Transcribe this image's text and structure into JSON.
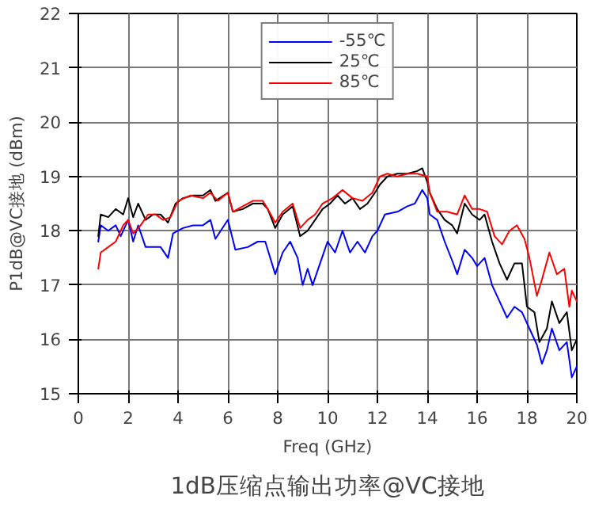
{
  "chart_data": {
    "type": "line",
    "xlabel": "Freq (GHz)",
    "ylabel": "P1dB@VC接地 (dBm)",
    "xlim": [
      0,
      20
    ],
    "ylim": [
      15,
      22
    ],
    "xticks": [
      0,
      2,
      4,
      6,
      8,
      10,
      12,
      14,
      16,
      18,
      20
    ],
    "yticks": [
      15,
      16,
      17,
      18,
      19,
      20,
      21,
      22
    ],
    "grid": true,
    "legend": "top",
    "line_style": "solid",
    "annotations": [
      "1dB压缩点输出功率@VC接地"
    ],
    "series": [
      {
        "name": "-55℃",
        "color": "#0000ff",
        "x": [
          0.8,
          0.9,
          1.2,
          1.5,
          1.7,
          2.0,
          2.2,
          2.4,
          2.7,
          3.0,
          3.3,
          3.6,
          3.8,
          4.2,
          4.6,
          5.0,
          5.3,
          5.5,
          6.0,
          6.3,
          6.8,
          7.2,
          7.5,
          7.9,
          8.2,
          8.5,
          8.8,
          9.0,
          9.2,
          9.4,
          9.7,
          10.0,
          10.3,
          10.6,
          10.9,
          11.2,
          11.5,
          11.8,
          12.0,
          12.3,
          12.8,
          13.2,
          13.5,
          13.8,
          14.0,
          14.1,
          14.4,
          14.7,
          15.0,
          15.2,
          15.5,
          15.8,
          16.0,
          16.3,
          16.6,
          16.9,
          17.2,
          17.5,
          17.8,
          18.1,
          18.4,
          18.6,
          18.8,
          19.0,
          19.3,
          19.6,
          19.8,
          20.0
        ],
        "values": [
          17.8,
          18.1,
          18.0,
          18.1,
          17.9,
          18.2,
          17.8,
          18.1,
          17.7,
          17.7,
          17.7,
          17.5,
          17.95,
          18.05,
          18.1,
          18.1,
          18.2,
          17.85,
          18.2,
          17.65,
          17.7,
          17.8,
          17.8,
          17.2,
          17.6,
          17.8,
          17.5,
          17.0,
          17.3,
          17.0,
          17.4,
          17.8,
          17.6,
          18.0,
          17.6,
          17.8,
          17.6,
          17.9,
          18.0,
          18.3,
          18.35,
          18.45,
          18.5,
          18.75,
          18.6,
          18.3,
          18.2,
          17.8,
          17.45,
          17.2,
          17.65,
          17.5,
          17.35,
          17.5,
          17.0,
          16.7,
          16.4,
          16.6,
          16.5,
          16.2,
          15.9,
          15.55,
          15.8,
          16.2,
          15.8,
          15.95,
          15.3,
          15.5
        ]
      },
      {
        "name": "25℃",
        "color": "#000000",
        "x": [
          0.8,
          0.9,
          1.2,
          1.5,
          1.8,
          2.0,
          2.2,
          2.4,
          2.7,
          3.0,
          3.3,
          3.6,
          3.9,
          4.2,
          4.6,
          5.0,
          5.3,
          5.5,
          6.0,
          6.2,
          6.6,
          7.0,
          7.4,
          7.6,
          7.9,
          8.2,
          8.6,
          8.9,
          9.2,
          9.5,
          9.8,
          10.1,
          10.4,
          10.7,
          11.0,
          11.3,
          11.6,
          11.9,
          12.1,
          12.4,
          12.8,
          13.2,
          13.6,
          13.8,
          14.0,
          14.1,
          14.4,
          14.7,
          15.0,
          15.2,
          15.5,
          15.8,
          16.1,
          16.3,
          16.6,
          16.9,
          17.2,
          17.5,
          17.8,
          18.0,
          18.3,
          18.5,
          18.8,
          19.0,
          19.3,
          19.6,
          19.8,
          20.0
        ],
        "values": [
          17.9,
          18.3,
          18.25,
          18.4,
          18.3,
          18.6,
          18.25,
          18.5,
          18.2,
          18.3,
          18.3,
          18.15,
          18.5,
          18.6,
          18.65,
          18.65,
          18.75,
          18.55,
          18.7,
          18.35,
          18.4,
          18.5,
          18.5,
          18.4,
          18.05,
          18.3,
          18.45,
          17.9,
          18.0,
          18.2,
          18.4,
          18.5,
          18.65,
          18.5,
          18.6,
          18.4,
          18.5,
          18.7,
          18.85,
          19.0,
          19.05,
          19.05,
          19.1,
          19.15,
          18.9,
          18.7,
          18.4,
          18.2,
          18.1,
          17.95,
          18.5,
          18.3,
          18.2,
          18.3,
          17.8,
          17.4,
          17.1,
          17.4,
          17.4,
          16.6,
          16.5,
          15.95,
          16.2,
          16.7,
          16.3,
          16.5,
          15.8,
          16.0
        ]
      },
      {
        "name": "85℃",
        "color": "#ff0000",
        "x": [
          0.8,
          0.9,
          1.2,
          1.5,
          1.8,
          2.0,
          2.2,
          2.5,
          2.8,
          3.1,
          3.4,
          3.7,
          4.0,
          4.5,
          5.0,
          5.3,
          5.6,
          6.0,
          6.2,
          6.6,
          7.0,
          7.4,
          7.6,
          7.9,
          8.2,
          8.6,
          8.9,
          9.2,
          9.5,
          9.8,
          10.2,
          10.6,
          11.0,
          11.4,
          11.8,
          12.1,
          12.4,
          12.8,
          13.2,
          13.6,
          14.0,
          14.1,
          14.4,
          14.8,
          15.2,
          15.5,
          15.8,
          16.1,
          16.4,
          16.7,
          17.0,
          17.3,
          17.6,
          17.9,
          18.1,
          18.4,
          18.6,
          18.9,
          19.2,
          19.5,
          19.7,
          19.8,
          20.0
        ],
        "values": [
          17.3,
          17.6,
          17.7,
          17.8,
          18.1,
          18.2,
          17.95,
          18.1,
          18.3,
          18.3,
          18.2,
          18.25,
          18.55,
          18.65,
          18.6,
          18.7,
          18.55,
          18.7,
          18.35,
          18.45,
          18.55,
          18.55,
          18.4,
          18.15,
          18.35,
          18.5,
          18.05,
          18.2,
          18.3,
          18.5,
          18.6,
          18.75,
          18.6,
          18.55,
          18.7,
          19.0,
          19.05,
          19.0,
          19.05,
          19.05,
          19.0,
          18.7,
          18.35,
          18.35,
          18.3,
          18.65,
          18.4,
          18.4,
          18.35,
          17.9,
          17.75,
          18.0,
          18.1,
          17.85,
          17.5,
          16.8,
          17.1,
          17.6,
          17.2,
          17.3,
          16.6,
          16.9,
          16.7
        ]
      }
    ]
  }
}
